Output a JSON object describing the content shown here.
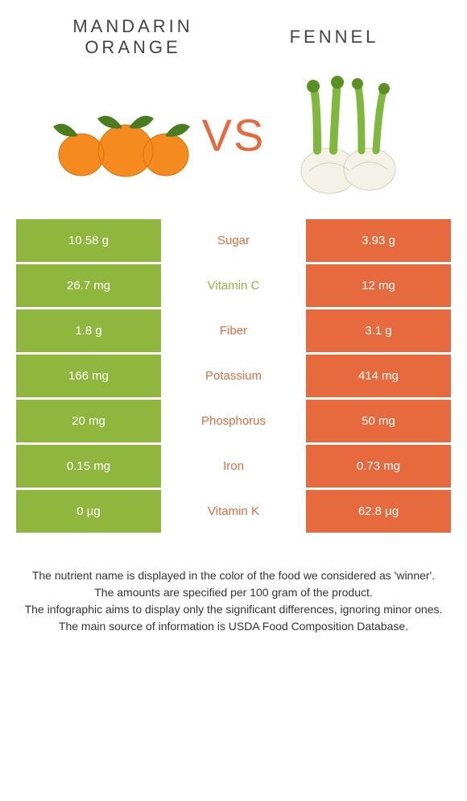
{
  "header": {
    "left_title_line1": "Mandarin",
    "left_title_line2": "Orange",
    "right_title": "Fennel"
  },
  "vs_label": "VS",
  "colors": {
    "left_bg": "#8fb73e",
    "right_bg": "#e66a3e",
    "left_winner_text": "#8fb73e",
    "right_winner_text": "#e66a3e",
    "vs_color": "#e66a3e"
  },
  "rows": [
    {
      "left": "10.58 g",
      "label": "Sugar",
      "right": "3.93 g",
      "winner": "right"
    },
    {
      "left": "26.7 mg",
      "label": "Vitamin C",
      "right": "12 mg",
      "winner": "left"
    },
    {
      "left": "1.8 g",
      "label": "Fiber",
      "right": "3.1 g",
      "winner": "right"
    },
    {
      "left": "166 mg",
      "label": "Potassium",
      "right": "414 mg",
      "winner": "right"
    },
    {
      "left": "20 mg",
      "label": "Phosphorus",
      "right": "50 mg",
      "winner": "right"
    },
    {
      "left": "0.15 mg",
      "label": "Iron",
      "right": "0.73 mg",
      "winner": "right"
    },
    {
      "left": "0 µg",
      "label": "Vitamin K",
      "right": "62.8 µg",
      "winner": "right"
    }
  ],
  "footer": {
    "line1": "The nutrient name is displayed in the color of the food we considered as 'winner'.",
    "line2": "The amounts are specified per 100 gram of the product.",
    "line3": "The infographic aims to display only the significant differences, ignoring minor ones.",
    "line4": "The main source of information is USDA Food Composition Database."
  }
}
